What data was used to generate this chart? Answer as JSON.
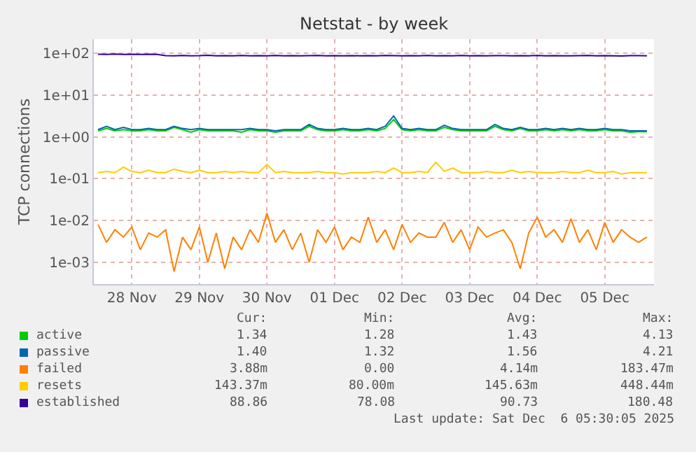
{
  "chart_data": {
    "type": "line",
    "title": "Netstat - by week",
    "ylabel": "TCP connections",
    "log": "y",
    "grid": true,
    "legend": "bottom",
    "marker": "none",
    "line_style": "solid",
    "xlim": [
      "2025-11-27T22:30",
      "2025-12-06T05:30"
    ],
    "xticks": [
      {
        "value": "2025-11-28T12:00",
        "label": "28 Nov"
      },
      {
        "value": "2025-11-29T12:00",
        "label": "29 Nov"
      },
      {
        "value": "2025-11-30T12:00",
        "label": "30 Nov"
      },
      {
        "value": "2025-12-01T12:00",
        "label": "01 Dec"
      },
      {
        "value": "2025-12-02T12:00",
        "label": "02 Dec"
      },
      {
        "value": "2025-12-03T12:00",
        "label": "03 Dec"
      },
      {
        "value": "2025-12-04T12:00",
        "label": "04 Dec"
      },
      {
        "value": "2025-12-05T12:00",
        "label": "05 Dec"
      }
    ],
    "ylim": [
      0.0003,
      220
    ],
    "yticks": [
      {
        "value": 0.001,
        "label": "1e-03"
      },
      {
        "value": 0.01,
        "label": "1e-02"
      },
      {
        "value": 0.1,
        "label": "1e-01"
      },
      {
        "value": 1,
        "label": "1e+00"
      },
      {
        "value": 10,
        "label": "1e+01"
      },
      {
        "value": 100,
        "label": "1e+02"
      }
    ],
    "x": [
      "2025-11-28T00:00",
      "2025-11-28T03:00",
      "2025-11-28T06:00",
      "2025-11-28T09:00",
      "2025-11-28T12:00",
      "2025-11-28T15:00",
      "2025-11-28T18:00",
      "2025-11-28T21:00",
      "2025-11-29T00:00",
      "2025-11-29T03:00",
      "2025-11-29T06:00",
      "2025-11-29T09:00",
      "2025-11-29T12:00",
      "2025-11-29T15:00",
      "2025-11-29T18:00",
      "2025-11-29T21:00",
      "2025-11-30T00:00",
      "2025-11-30T03:00",
      "2025-11-30T06:00",
      "2025-11-30T09:00",
      "2025-11-30T12:00",
      "2025-11-30T15:00",
      "2025-11-30T18:00",
      "2025-11-30T21:00",
      "2025-12-01T00:00",
      "2025-12-01T03:00",
      "2025-12-01T06:00",
      "2025-12-01T09:00",
      "2025-12-01T12:00",
      "2025-12-01T15:00",
      "2025-12-01T18:00",
      "2025-12-01T21:00",
      "2025-12-02T00:00",
      "2025-12-02T03:00",
      "2025-12-02T06:00",
      "2025-12-02T09:00",
      "2025-12-02T12:00",
      "2025-12-02T15:00",
      "2025-12-02T18:00",
      "2025-12-02T21:00",
      "2025-12-03T00:00",
      "2025-12-03T03:00",
      "2025-12-03T06:00",
      "2025-12-03T09:00",
      "2025-12-03T12:00",
      "2025-12-03T15:00",
      "2025-12-03T18:00",
      "2025-12-03T21:00",
      "2025-12-04T00:00",
      "2025-12-04T03:00",
      "2025-12-04T06:00",
      "2025-12-04T09:00",
      "2025-12-04T12:00",
      "2025-12-04T15:00",
      "2025-12-04T18:00",
      "2025-12-04T21:00",
      "2025-12-05T00:00",
      "2025-12-05T03:00",
      "2025-12-05T06:00",
      "2025-12-05T09:00",
      "2025-12-05T12:00",
      "2025-12-05T15:00",
      "2025-12-05T18:00",
      "2025-12-05T21:00",
      "2025-12-06T00:00",
      "2025-12-06T03:00"
    ],
    "series": [
      {
        "name": "active",
        "color": "#00cc00",
        "values": [
          1.4,
          1.6,
          1.4,
          1.5,
          1.4,
          1.4,
          1.5,
          1.4,
          1.4,
          1.7,
          1.5,
          1.3,
          1.5,
          1.4,
          1.4,
          1.4,
          1.4,
          1.3,
          1.5,
          1.4,
          1.4,
          1.3,
          1.4,
          1.4,
          1.4,
          1.8,
          1.5,
          1.4,
          1.4,
          1.5,
          1.4,
          1.4,
          1.5,
          1.4,
          1.6,
          2.6,
          1.5,
          1.4,
          1.5,
          1.4,
          1.4,
          1.7,
          1.5,
          1.4,
          1.4,
          1.4,
          1.4,
          1.8,
          1.5,
          1.4,
          1.6,
          1.4,
          1.4,
          1.5,
          1.4,
          1.5,
          1.4,
          1.5,
          1.4,
          1.4,
          1.5,
          1.4,
          1.4,
          1.3,
          1.34,
          1.34
        ]
      },
      {
        "name": "passive",
        "color": "#0066b3",
        "values": [
          1.5,
          1.8,
          1.5,
          1.7,
          1.5,
          1.5,
          1.6,
          1.5,
          1.5,
          1.8,
          1.6,
          1.5,
          1.6,
          1.5,
          1.5,
          1.5,
          1.5,
          1.5,
          1.6,
          1.5,
          1.5,
          1.4,
          1.5,
          1.5,
          1.5,
          2.0,
          1.6,
          1.5,
          1.5,
          1.6,
          1.5,
          1.5,
          1.6,
          1.5,
          1.8,
          3.2,
          1.6,
          1.5,
          1.6,
          1.5,
          1.5,
          1.9,
          1.6,
          1.5,
          1.5,
          1.5,
          1.5,
          2.0,
          1.6,
          1.5,
          1.7,
          1.5,
          1.5,
          1.6,
          1.5,
          1.6,
          1.5,
          1.6,
          1.5,
          1.5,
          1.6,
          1.5,
          1.5,
          1.4,
          1.4,
          1.4
        ]
      },
      {
        "name": "failed",
        "color": "#ff8000",
        "values": [
          0.008,
          0.003,
          0.006,
          0.004,
          0.007,
          0.002,
          0.005,
          0.004,
          0.006,
          0.0006,
          0.004,
          0.002,
          0.007,
          0.001,
          0.005,
          0.0007,
          0.004,
          0.002,
          0.006,
          0.003,
          0.015,
          0.003,
          0.006,
          0.002,
          0.005,
          0.001,
          0.006,
          0.003,
          0.007,
          0.002,
          0.004,
          0.003,
          0.012,
          0.003,
          0.006,
          0.002,
          0.008,
          0.003,
          0.005,
          0.004,
          0.004,
          0.009,
          0.003,
          0.006,
          0.002,
          0.007,
          0.004,
          0.005,
          0.006,
          0.003,
          0.0007,
          0.005,
          0.012,
          0.004,
          0.006,
          0.003,
          0.011,
          0.003,
          0.006,
          0.002,
          0.009,
          0.003,
          0.006,
          0.004,
          0.003,
          0.004
        ]
      },
      {
        "name": "resets",
        "color": "#ffcc00",
        "values": [
          0.14,
          0.15,
          0.14,
          0.19,
          0.15,
          0.14,
          0.16,
          0.14,
          0.14,
          0.17,
          0.15,
          0.14,
          0.16,
          0.14,
          0.14,
          0.15,
          0.14,
          0.15,
          0.14,
          0.14,
          0.22,
          0.14,
          0.15,
          0.14,
          0.14,
          0.14,
          0.15,
          0.14,
          0.14,
          0.13,
          0.14,
          0.14,
          0.14,
          0.15,
          0.14,
          0.18,
          0.14,
          0.14,
          0.15,
          0.14,
          0.25,
          0.15,
          0.18,
          0.14,
          0.14,
          0.14,
          0.15,
          0.14,
          0.14,
          0.16,
          0.14,
          0.15,
          0.14,
          0.14,
          0.14,
          0.15,
          0.14,
          0.14,
          0.16,
          0.14,
          0.14,
          0.15,
          0.13,
          0.14,
          0.14,
          0.14
        ]
      },
      {
        "name": "established",
        "color": "#330099",
        "values": [
          96,
          95,
          97,
          95,
          96,
          95,
          96,
          95,
          89,
          88,
          90,
          88,
          89,
          91,
          88,
          89,
          88,
          90,
          88,
          89,
          88,
          90,
          88,
          89,
          88,
          89,
          90,
          88,
          89,
          88,
          89,
          88,
          89,
          88,
          90,
          89,
          88,
          89,
          88,
          90,
          88,
          89,
          88,
          90,
          88,
          89,
          88,
          89,
          89,
          88,
          89,
          88,
          90,
          88,
          89,
          88,
          88,
          89,
          90,
          88,
          89,
          88,
          87,
          89,
          89,
          88
        ]
      }
    ],
    "annotations": [
      "Cur:",
      "Min:",
      "Avg:",
      "Max:",
      "1.34",
      "1.28",
      "1.43",
      "4.13",
      "1.40",
      "1.32",
      "1.56",
      "4.21",
      "3.88m",
      "0.00",
      "4.14m",
      "183.47m",
      "143.37m",
      "80.00m",
      "145.63m",
      "448.44m",
      "88.86",
      "78.08",
      "90.73",
      "180.48",
      "Last update: Sat Dec  6 05:30:05 2025"
    ]
  }
}
